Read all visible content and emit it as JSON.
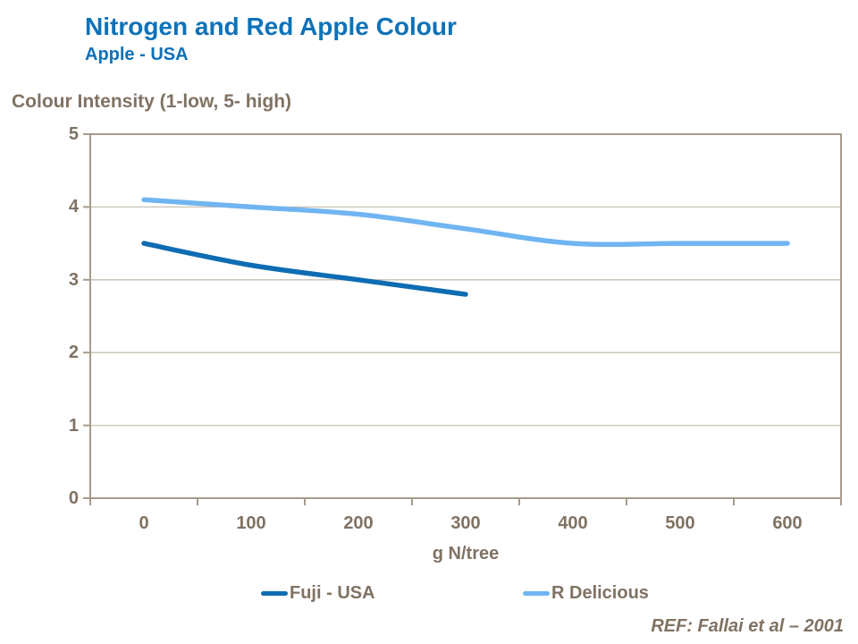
{
  "header": {
    "title": "Nitrogen and Red Apple Colour",
    "subtitle": "Apple - USA"
  },
  "footer": {
    "reference": "REF: Fallai et al – 2001"
  },
  "colors": {
    "title_blue": "#0D72B9",
    "axis_text": "#807263",
    "gridline": "#C9C1B2",
    "frame": "#A79B8B",
    "fuji_line": "#0E6CB3",
    "r_delicious_line": "#70B5F2"
  },
  "chart_data": {
    "type": "line",
    "title": "Nitrogen and Red Apple Colour",
    "subtitle": "Apple - USA",
    "xlabel": "g N/tree",
    "ylabel": "Colour Intensity (1-low, 5- high)",
    "categories": [
      "0",
      "100",
      "200",
      "300",
      "400",
      "500",
      "600"
    ],
    "y_ticks": [
      "0",
      "1",
      "2",
      "3",
      "4",
      "5"
    ],
    "ylim": [
      0,
      5
    ],
    "grid": "horizontal gridlines at integer values",
    "legend_position": "bottom",
    "line_style": "smoothed, rounded caps, no markers",
    "series": [
      {
        "name": "Fuji - USA",
        "color": "#0E6CB3",
        "values": [
          3.5,
          3.2,
          3.0,
          2.8
        ]
      },
      {
        "name": "R Delicious",
        "color": "#70B5F2",
        "values": [
          4.1,
          4.0,
          3.9,
          3.7,
          3.5,
          3.5,
          3.5
        ]
      }
    ]
  }
}
